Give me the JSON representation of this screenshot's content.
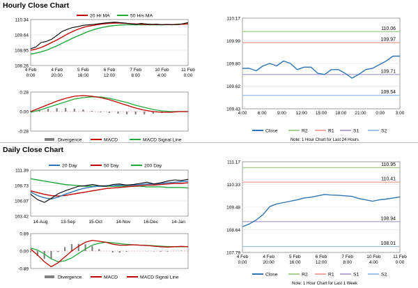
{
  "sections": {
    "hourly_title": "Hourly Close Chart",
    "daily_title": "Daily Close Chart"
  },
  "colors": {
    "close": "#2e75b6",
    "ma_short": "#c00000",
    "ma_long": "#1fa83c",
    "price_bar": "#000000",
    "macd": "#c00000",
    "signal": "#1fa83c",
    "divergence": "#808080",
    "r2": "#a9d08e",
    "r1": "#f4a6a6",
    "s1": "#b4a7d6",
    "s2": "#9dc3e6",
    "zero_line": "#e0a0a0"
  },
  "chart_data": [
    {
      "id": "hourly-price",
      "type": "line",
      "legend": [
        "20 Hr MA",
        "50 Hrs MA"
      ],
      "ylim": [
        108.26,
        110.34
      ],
      "yticks": [
        "110.34",
        "109.64",
        "108.95",
        "108.26"
      ],
      "xticks": [
        "4 Feb\n0:00",
        "4 Feb\n20:00",
        "5 Feb\n16:00",
        "6 Feb\n12:00",
        "7 Feb\n8:00",
        "10 Feb\n4:00",
        "11 Feb\n0:00"
      ],
      "series": [
        {
          "name": "",
          "values": [
            109.02,
            109.1,
            109.3,
            109.35,
            109.45,
            109.62,
            109.8,
            109.9,
            109.98,
            110.02,
            110.08,
            110.1,
            110.12,
            110.15,
            110.18,
            110.2,
            110.22,
            110.2,
            110.18,
            110.15,
            110.12,
            110.16,
            110.14,
            110.12,
            110.13,
            110.1,
            110.12,
            110.1,
            110.12,
            110.15,
            110.2
          ]
        },
        {
          "name": "20 Hr MA",
          "values": [
            108.95,
            109.0,
            109.08,
            109.18,
            109.3,
            109.42,
            109.55,
            109.68,
            109.8,
            109.9,
            109.98,
            110.04,
            110.08,
            110.12,
            110.15,
            110.17,
            110.18,
            110.18,
            110.17,
            110.15,
            110.14,
            110.13,
            110.12,
            110.12,
            110.11,
            110.11,
            110.11,
            110.11,
            110.12,
            110.13,
            110.14
          ]
        },
        {
          "name": "50 Hrs MA",
          "values": [
            108.78,
            108.82,
            108.88,
            108.95,
            109.05,
            109.15,
            109.27,
            109.38,
            109.5,
            109.6,
            109.7,
            109.8,
            109.88,
            109.95,
            110.0,
            110.04,
            110.07,
            110.09,
            110.1,
            110.1,
            110.1,
            110.1,
            110.1,
            110.1,
            110.1,
            110.1,
            110.11,
            110.11,
            110.12,
            110.13,
            110.14
          ]
        }
      ]
    },
    {
      "id": "hourly-macd",
      "type": "line",
      "legend": [
        "Divergence",
        "MACD",
        "MACD Signal Line"
      ],
      "ylim": [
        -0.28,
        0.28
      ],
      "yticks": [
        "0.28",
        "0.00",
        "-0.28"
      ],
      "series": [
        {
          "name": "MACD",
          "values": [
            0.0,
            0.05,
            0.1,
            0.15,
            0.19,
            0.22,
            0.23,
            0.22,
            0.2,
            0.17,
            0.13,
            0.09,
            0.05,
            0.02,
            0.0,
            -0.01,
            -0.01,
            0.0,
            0.0
          ]
        },
        {
          "name": "MACD Signal Line",
          "values": [
            -0.01,
            0.02,
            0.06,
            0.1,
            0.14,
            0.18,
            0.2,
            0.21,
            0.21,
            0.19,
            0.16,
            0.13,
            0.09,
            0.06,
            0.03,
            0.01,
            0.0,
            0.0,
            0.0
          ]
        },
        {
          "name": "Divergence",
          "values": [
            0.01,
            0.03,
            0.04,
            0.05,
            0.05,
            0.04,
            0.03,
            0.01,
            -0.01,
            -0.02,
            -0.03,
            -0.04,
            -0.04,
            -0.04,
            -0.03,
            -0.02,
            -0.01,
            0.0,
            0.0
          ]
        }
      ]
    },
    {
      "id": "hourly-close",
      "type": "line",
      "ylim": [
        109.43,
        110.17
      ],
      "yticks": [
        "110.17",
        "109.99",
        "109.80",
        "109.62",
        "109.43"
      ],
      "xticks": [
        "4:00",
        "6:00",
        "9:00",
        "12:00",
        "15:00",
        "18:00",
        "21:00",
        "0:00",
        "3:00"
      ],
      "levels": [
        {
          "name": "R2",
          "value": 110.06,
          "label": "110.06"
        },
        {
          "name": "R1",
          "value": 109.97,
          "label": "109.97"
        },
        {
          "name": "S1",
          "value": 109.71,
          "label": "109.71"
        },
        {
          "name": "S2",
          "value": 109.54,
          "label": "109.54"
        }
      ],
      "series": [
        {
          "name": "Close",
          "values": [
            109.76,
            109.76,
            109.74,
            109.78,
            109.8,
            109.78,
            109.82,
            109.8,
            109.75,
            109.77,
            109.77,
            109.72,
            109.71,
            109.75,
            109.75,
            109.72,
            109.68,
            109.71,
            109.75,
            109.76,
            109.79,
            109.82,
            109.86,
            109.86
          ]
        }
      ],
      "legend": [
        "Close",
        "R2",
        "R1",
        "S1",
        "S2"
      ],
      "note": "Note: 1 Hour Chart for Last 24 Hours"
    },
    {
      "id": "daily-price",
      "type": "line",
      "legend": [
        "20 Day",
        "50 Day",
        "200 Day"
      ],
      "ylim": [
        103.42,
        111.39
      ],
      "yticks": [
        "111.39",
        "108.73",
        "106.07",
        "103.42"
      ],
      "xticks": [
        "14-Aug",
        "13-Sep",
        "15-Oct",
        "14-Nov",
        "16-Dec",
        "14-Jan"
      ],
      "series": [
        {
          "name": "",
          "values": [
            107.2,
            106.3,
            105.8,
            106.5,
            107.3,
            107.8,
            108.2,
            108.6,
            108.7,
            108.9,
            108.7,
            108.6,
            108.9,
            109.0,
            108.8,
            108.9,
            109.1,
            109.3,
            109.0,
            109.2,
            109.5,
            109.7,
            109.6,
            109.8
          ]
        },
        {
          "name": "20 Day",
          "values": [
            107.6,
            107.0,
            106.6,
            106.4,
            106.7,
            107.2,
            107.6,
            108.0,
            108.3,
            108.5,
            108.6,
            108.7,
            108.7,
            108.8,
            108.8,
            108.8,
            108.9,
            109.0,
            109.0,
            109.1,
            109.2,
            109.3,
            109.4,
            109.5
          ]
        },
        {
          "name": "50 Day",
          "values": [
            107.8,
            107.5,
            107.2,
            107.0,
            106.9,
            107.0,
            107.2,
            107.4,
            107.6,
            107.8,
            108.0,
            108.2,
            108.3,
            108.4,
            108.5,
            108.6,
            108.7,
            108.8,
            108.8,
            108.9,
            109.0,
            109.1,
            109.1,
            109.2
          ]
        },
        {
          "name": "200 Day",
          "values": [
            109.9,
            109.7,
            109.5,
            109.3,
            109.1,
            108.9,
            108.8,
            108.7,
            108.6,
            108.6,
            108.6,
            108.6,
            108.6,
            108.6,
            108.6,
            108.6,
            108.6,
            108.5,
            108.5,
            108.5,
            108.4,
            108.4,
            108.4,
            108.3
          ]
        }
      ]
    },
    {
      "id": "daily-macd",
      "type": "line",
      "legend": [
        "Divergence",
        "MACD",
        "MACD Signal Line"
      ],
      "ylim": [
        -0.89,
        0.89
      ],
      "yticks": [
        "0.89",
        "0.00",
        "-0.89"
      ],
      "series": [
        {
          "name": "MACD",
          "values": [
            0.1,
            -0.2,
            -0.55,
            -0.8,
            -0.6,
            -0.3,
            0.0,
            0.25,
            0.45,
            0.55,
            0.5,
            0.45,
            0.35,
            0.3,
            0.3,
            0.32,
            0.3,
            0.28,
            0.25,
            0.22,
            0.2,
            0.22,
            0.24,
            0.22
          ]
        },
        {
          "name": "MACD Signal Line",
          "values": [
            0.15,
            0.05,
            -0.15,
            -0.4,
            -0.55,
            -0.5,
            -0.35,
            -0.12,
            0.1,
            0.3,
            0.4,
            0.45,
            0.42,
            0.38,
            0.34,
            0.32,
            0.3,
            0.29,
            0.27,
            0.25,
            0.23,
            0.22,
            0.22,
            0.22
          ]
        },
        {
          "name": "Divergence",
          "values": [
            -0.05,
            -0.25,
            -0.4,
            -0.4,
            -0.05,
            0.2,
            0.35,
            0.37,
            0.35,
            0.25,
            0.1,
            0.0,
            -0.07,
            -0.08,
            -0.04,
            0.0,
            0.0,
            -0.01,
            -0.02,
            -0.03,
            -0.03,
            0.0,
            0.02,
            0.0
          ]
        }
      ]
    },
    {
      "id": "daily-close",
      "type": "line",
      "ylim": [
        107.79,
        111.17
      ],
      "yticks": [
        "111.17",
        "110.33",
        "109.48",
        "108.64",
        "107.79"
      ],
      "xticks": [
        "4 Feb\n0:00",
        "4 Feb\n20:00",
        "5 Feb\n16:00",
        "6 Feb\n12:00",
        "7 Feb\n8:00",
        "10 Feb\n4:00",
        "11 Feb\n0:00"
      ],
      "levels": [
        {
          "name": "R2",
          "value": 110.95,
          "label": "110.95"
        },
        {
          "name": "R1",
          "value": 110.41,
          "label": "110.41"
        },
        {
          "name": "S1",
          "value": 108.94,
          "label": "108.94"
        },
        {
          "name": "S2",
          "value": 108.01,
          "label": "108.01"
        }
      ],
      "series": [
        {
          "name": "Close",
          "values": [
            108.75,
            108.85,
            109.0,
            109.2,
            109.5,
            109.6,
            109.65,
            109.7,
            109.75,
            109.82,
            109.85,
            109.9,
            109.95,
            109.93,
            109.92,
            109.9,
            109.88,
            109.8,
            109.75,
            109.7,
            109.75,
            109.78,
            109.82,
            109.86
          ]
        }
      ],
      "legend": [
        "Close",
        "R2",
        "R1",
        "S1",
        "S2"
      ],
      "note": "Note: 1 Hour Chart for Last 1 Week"
    }
  ]
}
